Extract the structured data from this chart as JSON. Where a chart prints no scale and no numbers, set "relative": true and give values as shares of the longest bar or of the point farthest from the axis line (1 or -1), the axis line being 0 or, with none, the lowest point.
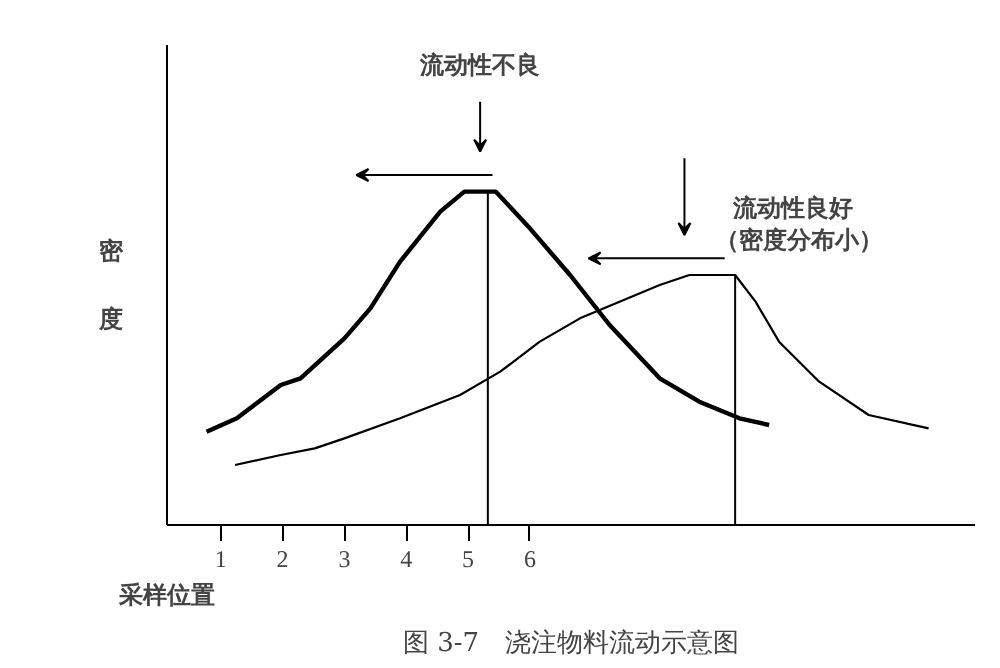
{
  "chart_data": {
    "type": "line",
    "relative": true,
    "title": "图 3-7　浇注物料流动示意图",
    "xlabel": "采样位置",
    "ylabel": "密度",
    "xlim": [
      0.13,
      13.2
    ],
    "xticks": [
      1,
      2,
      3,
      4,
      5,
      6
    ],
    "grid": false,
    "marker": "none",
    "line_style": "solid",
    "series": [
      {
        "color": "#000000",
        "x": [
          0.77,
          1.26,
          1.97,
          2.29,
          3.0,
          3.42,
          3.9,
          4.55,
          4.94,
          5.45,
          6.0,
          6.65,
          7.29,
          8.1,
          8.74,
          9.39,
          9.87
        ],
        "values": [
          0.28,
          0.32,
          0.42,
          0.44,
          0.56,
          0.65,
          0.79,
          0.94,
          1.0,
          1.0,
          0.89,
          0.75,
          0.6,
          0.44,
          0.37,
          0.32,
          0.3
        ]
      },
      {
        "color": "#000000",
        "x": [
          1.23,
          1.97,
          2.52,
          3.0,
          3.9,
          4.87,
          5.52,
          6.16,
          6.81,
          7.45,
          8.1,
          8.58,
          9.32,
          9.65,
          10.03,
          10.68,
          11.48,
          12.45
        ],
        "values": [
          0.18,
          0.21,
          0.23,
          0.26,
          0.32,
          0.39,
          0.46,
          0.55,
          0.62,
          0.67,
          0.72,
          0.75,
          0.75,
          0.67,
          0.55,
          0.43,
          0.33,
          0.29
        ]
      }
    ],
    "ref_lines": [
      {
        "axis": "x",
        "value": 5.32,
        "color": "#000000"
      },
      {
        "axis": "x",
        "value": 9.32,
        "color": "#000000"
      }
    ],
    "annotations": [
      "流动性不良",
      "流动性良好",
      "（密度分布小）"
    ]
  }
}
